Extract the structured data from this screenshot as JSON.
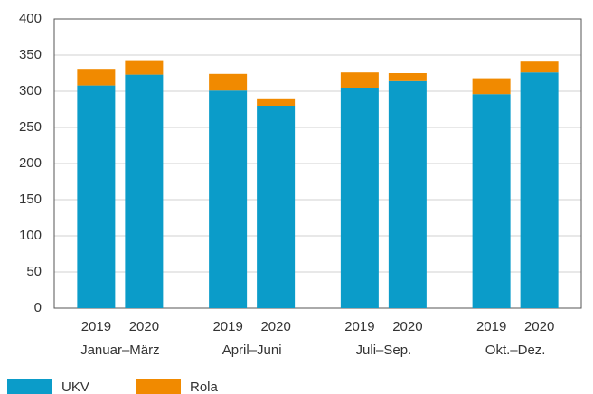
{
  "chart_data": {
    "type": "stacked-bar",
    "categories": [
      "2019",
      "2020",
      "2019",
      "2020",
      "2019",
      "2020",
      "2019",
      "2020"
    ],
    "groups": [
      "Januar–März",
      "April–Juni",
      "Juli–Sep.",
      "Okt.–Dez."
    ],
    "series": [
      {
        "name": "UKV",
        "color": "#0b9cc9",
        "values": [
          308,
          323,
          301,
          280,
          305,
          314,
          296,
          326
        ]
      },
      {
        "name": "Rola",
        "color": "#f18a00",
        "values": [
          23,
          20,
          23,
          9,
          21,
          11,
          22,
          15
        ]
      }
    ],
    "ylim": [
      0,
      400
    ],
    "yticks": [
      0,
      50,
      100,
      150,
      200,
      250,
      300,
      350,
      400
    ],
    "grid": true
  }
}
